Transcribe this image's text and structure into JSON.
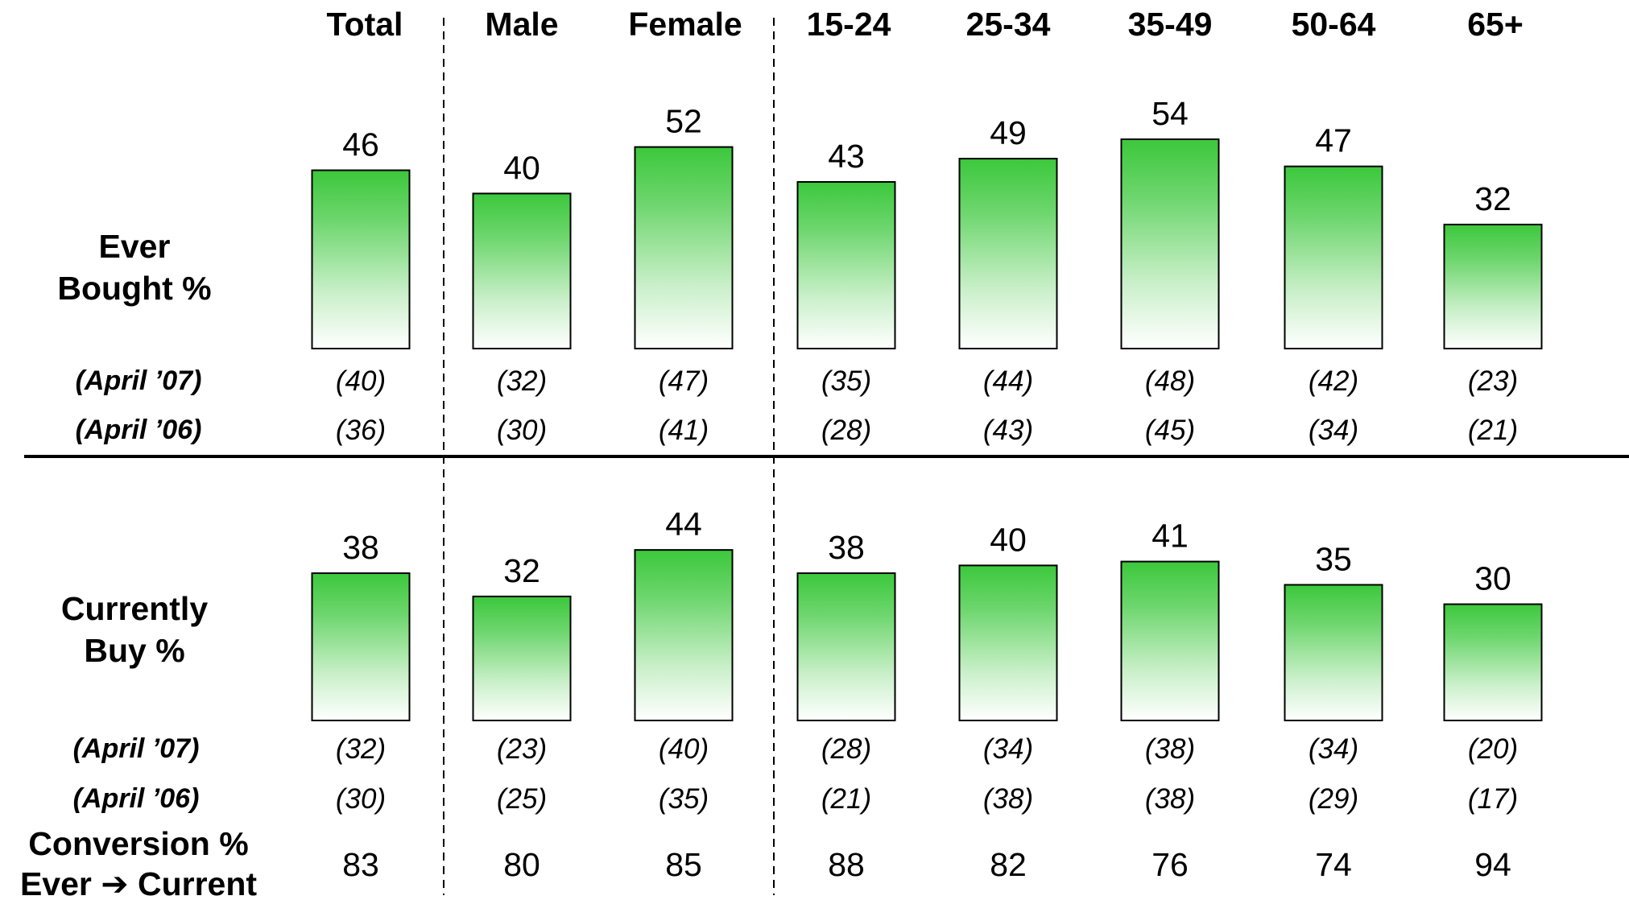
{
  "chart_data": [
    {
      "type": "bar",
      "title": "",
      "row_label": [
        "Ever",
        "Bought %"
      ],
      "categories": [
        "Total",
        "Male",
        "Female",
        "15-24",
        "25-34",
        "35-49",
        "50-64",
        "65+"
      ],
      "values": [
        46,
        40,
        52,
        43,
        49,
        54,
        47,
        32
      ],
      "comparisons": [
        {
          "label": "(April ’07)",
          "values": [
            "(40)",
            "(32)",
            "(47)",
            "(35)",
            "(44)",
            "(48)",
            "(42)",
            "(23)"
          ]
        },
        {
          "label": "(April ’06)",
          "values": [
            "(36)",
            "(30)",
            "(41)",
            "(28)",
            "(43)",
            "(45)",
            "(34)",
            "(21)"
          ]
        }
      ],
      "ylim": [
        0,
        60
      ],
      "grid": false,
      "legend": "none"
    },
    {
      "type": "bar",
      "title": "",
      "row_label": [
        "Currently",
        "Buy %"
      ],
      "categories": [
        "Total",
        "Male",
        "Female",
        "15-24",
        "25-34",
        "35-49",
        "50-64",
        "65+"
      ],
      "values": [
        38,
        32,
        44,
        38,
        40,
        41,
        35,
        30
      ],
      "comparisons": [
        {
          "label": "(April ’07)",
          "values": [
            "(32)",
            "(23)",
            "(40)",
            "(28)",
            "(34)",
            "(38)",
            "(34)",
            "(20)"
          ]
        },
        {
          "label": "(April ’06)",
          "values": [
            "(30)",
            "(25)",
            "(35)",
            "(21)",
            "(38)",
            "(38)",
            "(29)",
            "(17)"
          ]
        }
      ],
      "ylim": [
        0,
        60
      ],
      "grid": false,
      "legend": "none"
    }
  ],
  "conversion": {
    "label": [
      "Conversion %",
      "Ever ➔ Current"
    ],
    "values": [
      83,
      80,
      85,
      88,
      82,
      76,
      74,
      94
    ]
  },
  "colors": {
    "bar_top": "#3cc83c",
    "bar_bottom": "#ffffff",
    "bar_stroke": "#000000",
    "text": "#000000"
  }
}
